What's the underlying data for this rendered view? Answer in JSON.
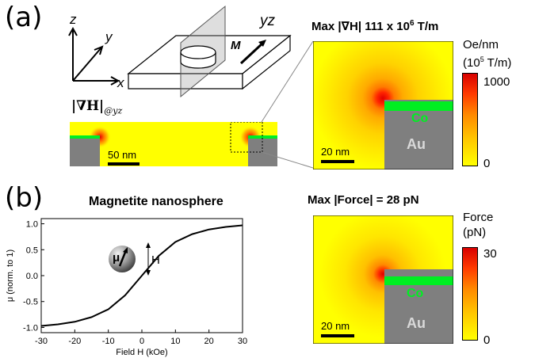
{
  "panel_a": {
    "label": "(a)",
    "axes": {
      "z": "z",
      "y": "y",
      "x": "x"
    },
    "plane_label": "yz",
    "magnetization_label": "M",
    "cross_section_label_main": "|∇H|",
    "cross_section_label_sub": "@yz",
    "scale_bar_small": "50 nm",
    "map_title_prefix": "Max |∇H| 111 x 10",
    "map_title_exp": "6",
    "map_title_suffix": " T/m",
    "map_scale_bar": "20 nm",
    "layer_top": "Co",
    "layer_bottom": "Au",
    "colorbar_unit_line1": "Oe/nm",
    "colorbar_unit_line2_pre": "(10",
    "colorbar_unit_line2_exp": "5",
    "colorbar_unit_line2_post": " T/m)",
    "colorbar_max": "1000",
    "colorbar_min": "0"
  },
  "panel_b": {
    "label": "(b)",
    "curve_title": "Magnetite nanosphere",
    "sphere_moment_label": "μ",
    "field_label": "H",
    "map_title_prefix": "Max |Force| = ",
    "map_title_value": "28 pN",
    "map_scale_bar": "20 nm",
    "layer_top": "Co",
    "layer_bottom": "Au",
    "colorbar_unit_line1": "Force",
    "colorbar_unit_line2": "(pN)",
    "colorbar_max": "30",
    "colorbar_min": "0"
  },
  "chart_data": {
    "type": "line",
    "xlabel": "Field H (kOe)",
    "ylabel": "μ (norm. to 1)",
    "xlim": [
      -30,
      30
    ],
    "ylim": [
      -1.1,
      1.1
    ],
    "xticks": [
      "-30",
      "-20",
      "-10",
      "0",
      "10",
      "20",
      "30"
    ],
    "yticks": [
      "-1.0",
      "-0.5",
      "0.0",
      "0.5",
      "1.0"
    ],
    "series": [
      {
        "x": [
          -30,
          -25,
          -20,
          -15,
          -10,
          -5,
          0,
          5,
          10,
          15,
          20,
          25,
          30
        ],
        "y": [
          -0.97,
          -0.94,
          -0.89,
          -0.8,
          -0.65,
          -0.38,
          0.0,
          0.38,
          0.65,
          0.8,
          0.89,
          0.94,
          0.97
        ]
      }
    ]
  },
  "colors": {
    "yellow": "#ffff00",
    "hot_red": "#e50000",
    "co_green": "#00ee22",
    "au_gray": "#7f7f7f"
  }
}
